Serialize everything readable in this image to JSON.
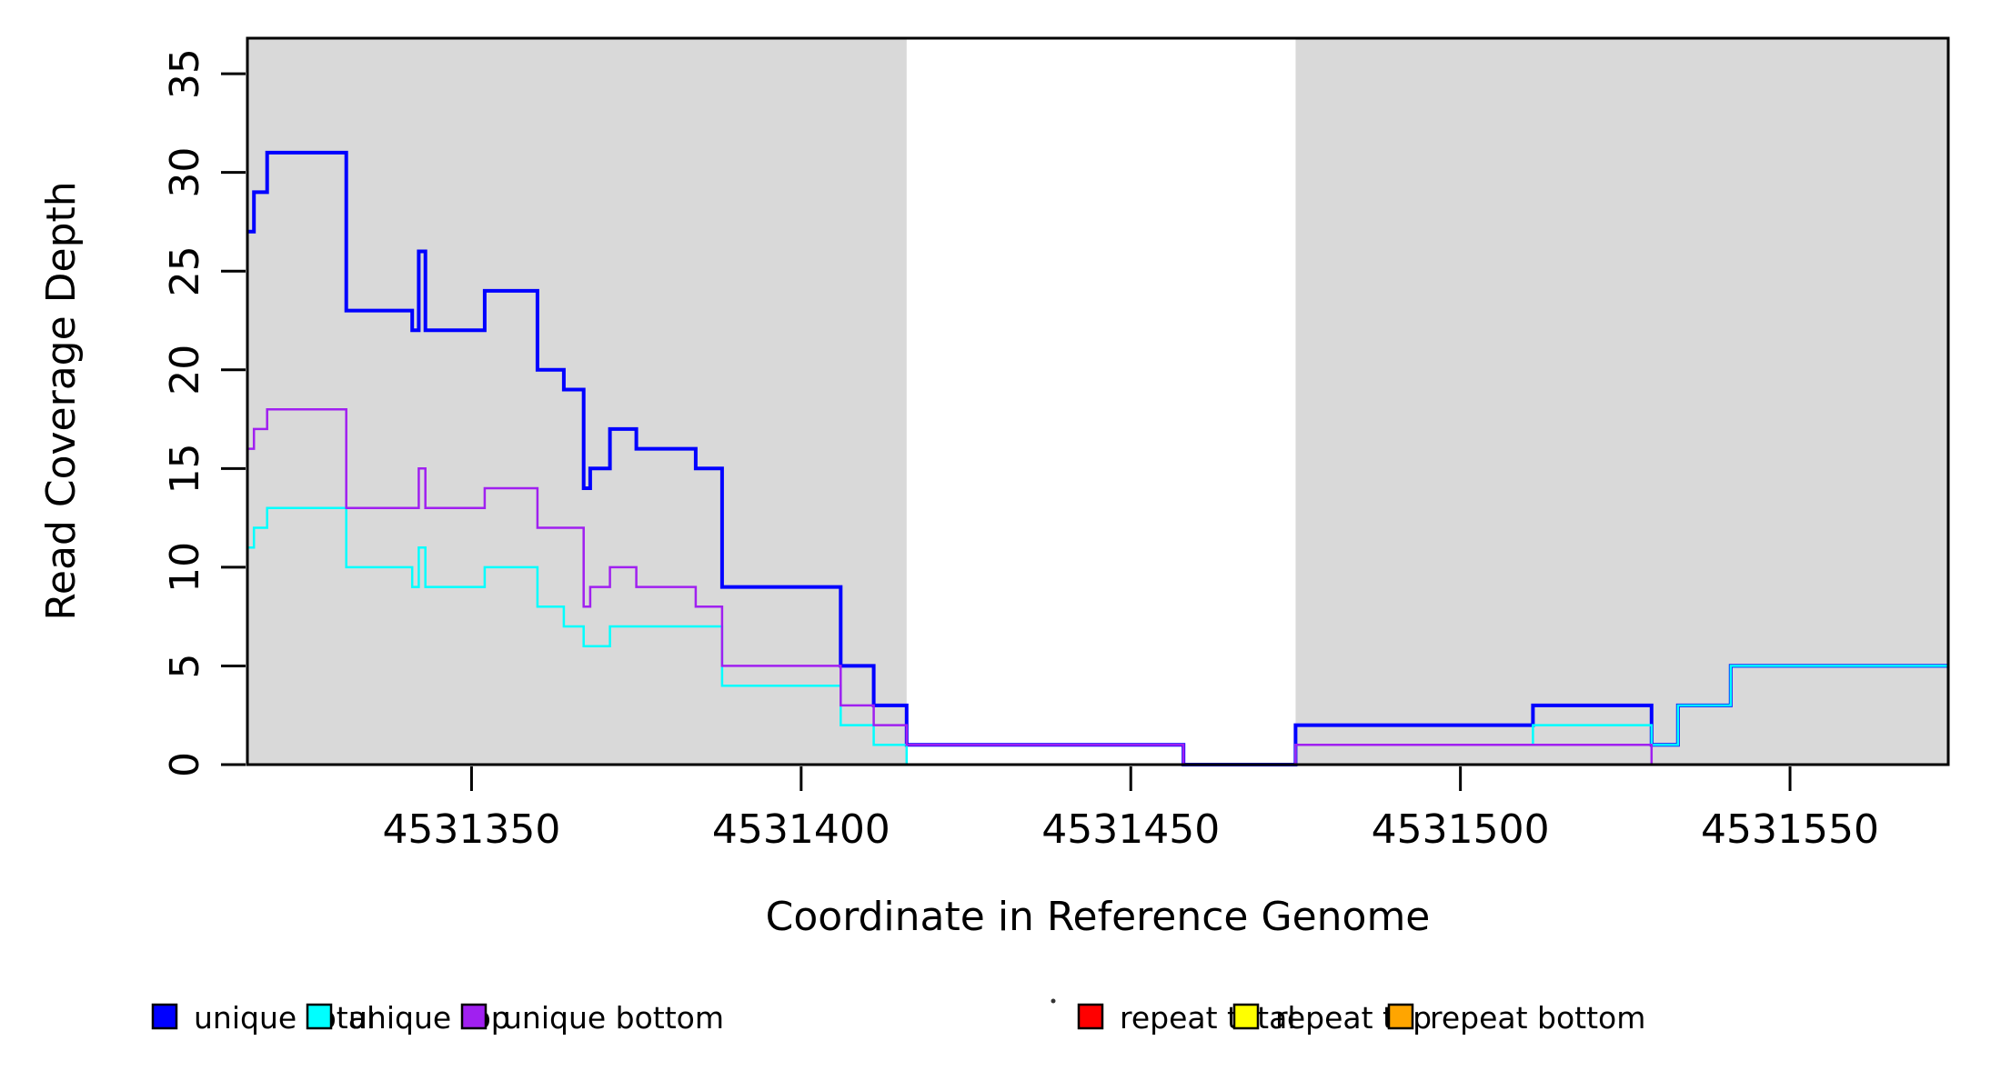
{
  "chart_data": {
    "type": "line",
    "subtype": "step-coverage-plot",
    "title": "",
    "xlabel": "Coordinate in Reference Genome",
    "ylabel": "Read Coverage Depth",
    "xlim": [
      4531316,
      4531574
    ],
    "ylim": [
      0,
      36.8
    ],
    "x_ticks": [
      4531350,
      4531400,
      4531450,
      4531500,
      4531550
    ],
    "y_ticks": [
      0,
      5,
      10,
      15,
      20,
      25,
      30,
      35
    ],
    "grid": false,
    "legend_position": "bottom",
    "plot_background": "#FFFFFF",
    "shaded_region_color": "#D9D9D9",
    "shaded_regions": [
      [
        4531316,
        4531416
      ],
      [
        4531475,
        4531574
      ]
    ],
    "series": [
      {
        "name": "unique total",
        "color": "#0000FF",
        "width": 4,
        "end": 4531574,
        "steps": [
          [
            4531316,
            27
          ],
          [
            4531317,
            29
          ],
          [
            4531319,
            31
          ],
          [
            4531331,
            23
          ],
          [
            4531341,
            22
          ],
          [
            4531342,
            26
          ],
          [
            4531343,
            22
          ],
          [
            4531352,
            24
          ],
          [
            4531360,
            20
          ],
          [
            4531364,
            19
          ],
          [
            4531367,
            14
          ],
          [
            4531368,
            15
          ],
          [
            4531371,
            17
          ],
          [
            4531375,
            16
          ],
          [
            4531384,
            15
          ],
          [
            4531388,
            9
          ],
          [
            4531406,
            5
          ],
          [
            4531411,
            3
          ],
          [
            4531416,
            1
          ],
          [
            4531458,
            0
          ],
          [
            4531475,
            2
          ],
          [
            4531511,
            3
          ],
          [
            4531529,
            1
          ],
          [
            4531533,
            3
          ],
          [
            4531541,
            5
          ]
        ]
      },
      {
        "name": "repeat total",
        "color": "#FF0000",
        "width": 2.5,
        "end": 4531574,
        "steps": [
          [
            4531316,
            0
          ]
        ]
      },
      {
        "name": "repeat top",
        "color": "#FFFF00",
        "width": 2.5,
        "end": 4531574,
        "steps": [
          [
            4531316,
            0
          ]
        ]
      },
      {
        "name": "repeat bottom",
        "color": "#FFA500",
        "width": 3,
        "end": 4531574,
        "steps": [
          [
            4531316,
            0
          ]
        ]
      },
      {
        "name": "unique top",
        "color": "#00FFFF",
        "width": 2.5,
        "end": 4531574,
        "steps": [
          [
            4531316,
            11
          ],
          [
            4531317,
            12
          ],
          [
            4531319,
            13
          ],
          [
            4531331,
            10
          ],
          [
            4531341,
            9
          ],
          [
            4531342,
            11
          ],
          [
            4531343,
            9
          ],
          [
            4531352,
            10
          ],
          [
            4531360,
            8
          ],
          [
            4531364,
            7
          ],
          [
            4531367,
            6
          ],
          [
            4531371,
            7
          ],
          [
            4531388,
            4
          ],
          [
            4531406,
            2
          ],
          [
            4531411,
            1
          ],
          [
            4531416,
            0
          ],
          [
            4531475,
            1
          ],
          [
            4531511,
            2
          ],
          [
            4531529,
            1
          ],
          [
            4531533,
            3
          ],
          [
            4531541,
            5
          ]
        ]
      },
      {
        "name": "unique bottom",
        "color": "#A020F0",
        "width": 2.5,
        "end": 4531574,
        "steps": [
          [
            4531316,
            16
          ],
          [
            4531317,
            17
          ],
          [
            4531319,
            18
          ],
          [
            4531331,
            13
          ],
          [
            4531342,
            15
          ],
          [
            4531343,
            13
          ],
          [
            4531352,
            14
          ],
          [
            4531360,
            12
          ],
          [
            4531367,
            8
          ],
          [
            4531368,
            9
          ],
          [
            4531371,
            10
          ],
          [
            4531375,
            9
          ],
          [
            4531384,
            8
          ],
          [
            4531388,
            5
          ],
          [
            4531406,
            3
          ],
          [
            4531411,
            2
          ],
          [
            4531416,
            1
          ],
          [
            4531458,
            0
          ],
          [
            4531475,
            1
          ],
          [
            4531529,
            0
          ]
        ]
      }
    ],
    "legend": [
      {
        "label": "unique total",
        "color": "#0000FF"
      },
      {
        "label": "unique top",
        "color": "#00FFFF"
      },
      {
        "label": "unique bottom",
        "color": "#A020F0"
      },
      {
        "label": "repeat total",
        "color": "#FF0000"
      },
      {
        "label": "repeat top",
        "color": "#FFFF00"
      },
      {
        "label": "repeat bottom",
        "color": "#FFA500"
      }
    ],
    "stray_mark": {
      "x": 1158,
      "y": 1101
    }
  }
}
